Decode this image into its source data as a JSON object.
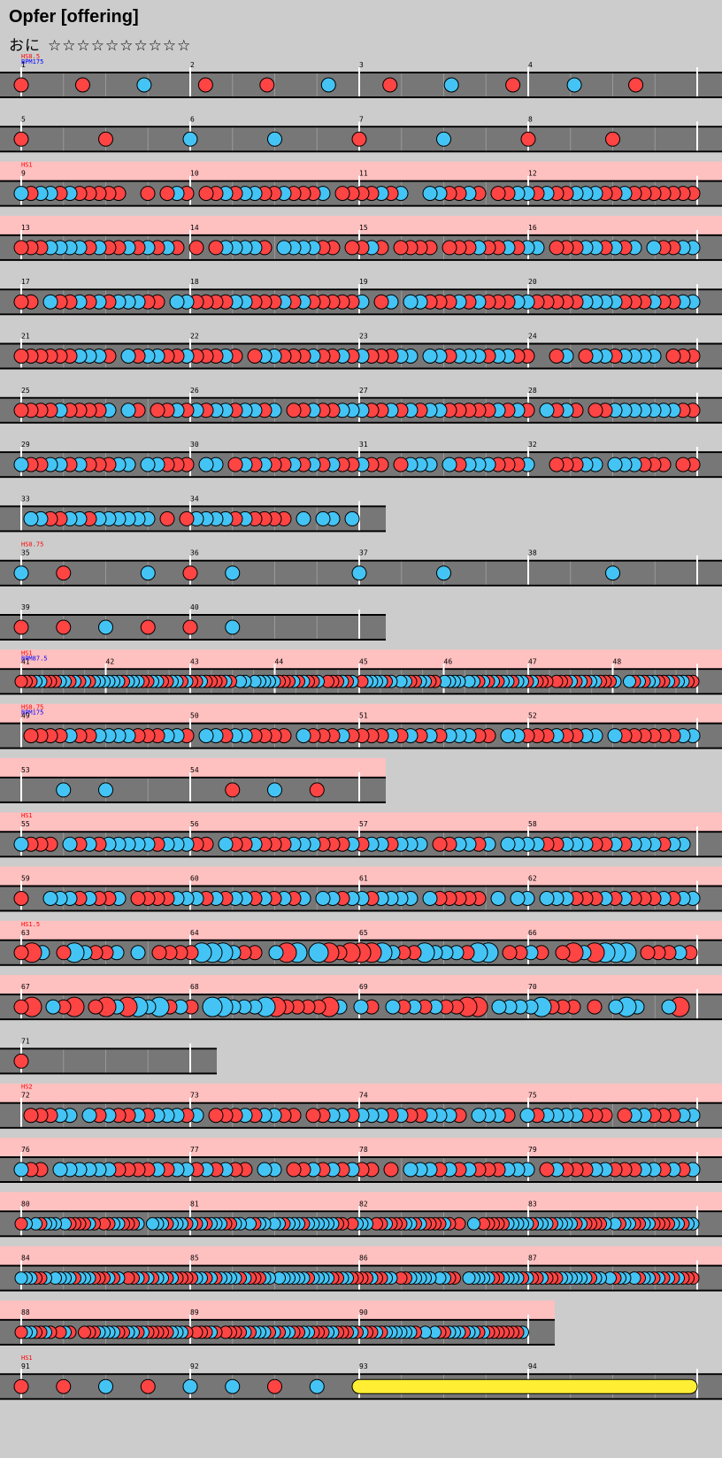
{
  "header": {
    "title": "Opfer [offering]",
    "difficulty_label": "おに",
    "stars": "☆☆☆☆☆☆☆☆☆☆"
  },
  "colors": {
    "don": "#ff4444",
    "ka": "#44c4f4",
    "lane": "#777777",
    "hs_highlight": "#ffc0c0",
    "drumroll": "#ffee33",
    "hs_text": "#ff0000",
    "bpm_text": "#0000ff"
  },
  "rows": [
    {
      "measures": [
        1,
        2,
        3,
        4
      ],
      "pattern": "d d k d d k d k d k d",
      "markers": [
        {
          "text": "HS0.5",
          "type": "hs"
        },
        {
          "text": "BPM175",
          "type": "bpm"
        }
      ]
    },
    {
      "measures": [
        5,
        6,
        7,
        8
      ],
      "pattern": "d d k k d k d d",
      "markers": []
    },
    {
      "measures": [
        9,
        10,
        11,
        12
      ],
      "pattern": "dense",
      "hs": true,
      "markers": [
        {
          "text": "HS1",
          "type": "hs"
        }
      ]
    },
    {
      "measures": [
        13,
        14,
        15,
        16
      ],
      "pattern": "dense",
      "hs": true,
      "markers": []
    },
    {
      "measures": [
        17,
        18,
        19,
        20
      ],
      "pattern": "dense",
      "markers": []
    },
    {
      "measures": [
        21,
        22,
        23,
        24
      ],
      "pattern": "dense",
      "markers": []
    },
    {
      "measures": [
        25,
        26,
        27,
        28
      ],
      "pattern": "dense",
      "markers": []
    },
    {
      "measures": [
        29,
        30,
        31,
        32
      ],
      "pattern": "dense",
      "markers": []
    },
    {
      "measures": [
        33,
        34
      ],
      "pattern": "dense",
      "markers": []
    },
    {
      "measures": [
        35,
        36,
        37,
        38
      ],
      "pattern": "sparse",
      "markers": [
        {
          "text": "HS0.75",
          "type": "hs"
        }
      ]
    },
    {
      "measures": [
        39,
        40
      ],
      "pattern": "sparse",
      "markers": []
    },
    {
      "measures": [
        41,
        42,
        43,
        44,
        45,
        46,
        47,
        48
      ],
      "pattern": "very-dense",
      "hs": true,
      "markers": [
        {
          "text": "HS1",
          "type": "hs"
        },
        {
          "text": "BPM87.5",
          "type": "bpm"
        }
      ]
    },
    {
      "measures": [
        49,
        50,
        51,
        52
      ],
      "pattern": "dense",
      "hs": true,
      "markers": [
        {
          "text": "HS0.75",
          "type": "hs"
        },
        {
          "text": "BPM175",
          "type": "bpm"
        }
      ]
    },
    {
      "measures": [
        53,
        54
      ],
      "pattern": "sparse",
      "hs": true,
      "markers": []
    },
    {
      "measures": [
        55,
        56,
        57,
        58
      ],
      "pattern": "dense",
      "hs": true,
      "markers": [
        {
          "text": "HS1",
          "type": "hs"
        }
      ]
    },
    {
      "measures": [
        59,
        60,
        61,
        62
      ],
      "pattern": "dense",
      "hs": true,
      "markers": []
    },
    {
      "measures": [
        63,
        64,
        65,
        66
      ],
      "pattern": "dense-big",
      "hs": true,
      "markers": [
        {
          "text": "HS1.5",
          "type": "hs"
        }
      ]
    },
    {
      "measures": [
        67,
        68,
        69,
        70
      ],
      "pattern": "dense-big",
      "hs": true,
      "markers": []
    },
    {
      "measures": [
        71
      ],
      "pattern": "single",
      "markers": []
    },
    {
      "measures": [
        72,
        73,
        74,
        75
      ],
      "pattern": "dense",
      "hs": true,
      "markers": [
        {
          "text": "HS2",
          "type": "hs"
        }
      ]
    },
    {
      "measures": [
        76,
        77,
        78,
        79
      ],
      "pattern": "dense",
      "hs": true,
      "markers": []
    },
    {
      "measures": [
        80,
        81,
        82,
        83
      ],
      "pattern": "very-dense",
      "hs": true,
      "markers": []
    },
    {
      "measures": [
        84,
        85,
        86,
        87
      ],
      "pattern": "very-dense",
      "hs": true,
      "markers": []
    },
    {
      "measures": [
        88,
        89,
        90
      ],
      "pattern": "very-dense",
      "hs": true,
      "markers": []
    },
    {
      "measures": [
        91,
        92,
        93,
        94
      ],
      "pattern": "sparse-roll",
      "markers": [
        {
          "text": "HS1",
          "type": "hs"
        }
      ]
    }
  ]
}
